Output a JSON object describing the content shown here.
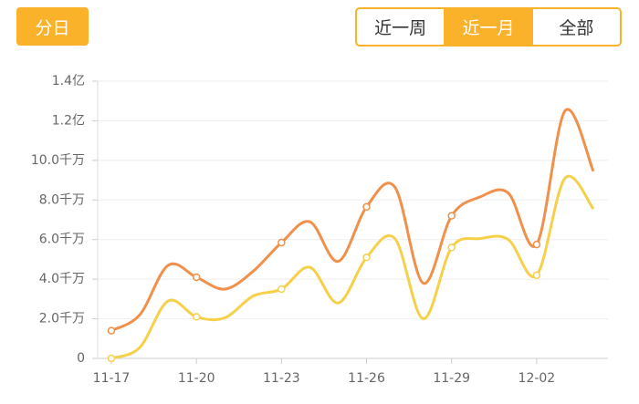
{
  "controls": {
    "day_button": "分日",
    "tabs": [
      "近一周",
      "近一月",
      "全部"
    ],
    "selected_tab": 1
  },
  "chart_data": {
    "type": "line",
    "categories": [
      "11-17",
      null,
      null,
      "11-20",
      null,
      null,
      "11-23",
      null,
      null,
      "11-26",
      null,
      null,
      "11-29",
      null,
      null,
      "12-02",
      null,
      null
    ],
    "series": [
      {
        "color": "#f0904a",
        "values": [
          1.4,
          2.2,
          4.7,
          4.1,
          3.5,
          4.4,
          5.85,
          6.9,
          4.9,
          7.65,
          8.65,
          3.8,
          7.2,
          8.15,
          8.35,
          5.75,
          12.5,
          9.45
        ]
      },
      {
        "color": "#f7d04a",
        "values": [
          0,
          0.55,
          2.9,
          2.1,
          2.05,
          3.15,
          3.5,
          4.6,
          2.8,
          5.1,
          6.05,
          2.0,
          5.6,
          6.05,
          6.0,
          4.2,
          9.1,
          7.55
        ]
      }
    ],
    "ylim": [
      0,
      14
    ],
    "yticks": [
      0,
      {
        "value": 2,
        "label": "2.0千万"
      },
      {
        "value": 4,
        "label": "4.0千万"
      },
      {
        "value": 6,
        "label": "6.0千万"
      },
      {
        "value": 8,
        "label": "8.0千万"
      },
      {
        "value": 10,
        "label": "10.0千万"
      },
      {
        "value": 12,
        "label": "1.2亿"
      },
      {
        "value": 14,
        "label": "1.4亿"
      }
    ],
    "grid": true
  }
}
